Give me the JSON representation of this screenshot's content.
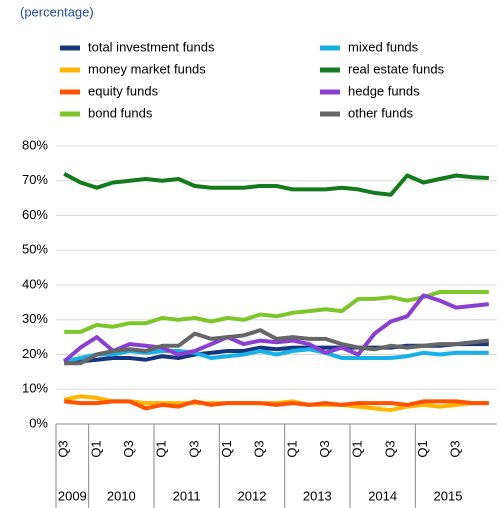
{
  "chart_data": {
    "type": "line",
    "subtitle": "(percentage)",
    "categories": [
      "Q3",
      null,
      "Q1",
      null,
      "Q3",
      null,
      "Q1",
      null,
      "Q3",
      null,
      "Q1",
      null,
      "Q3",
      null,
      "Q1",
      null,
      "Q3",
      null,
      "Q1",
      null,
      "Q3",
      null,
      "Q1",
      null,
      "Q3",
      null,
      null
    ],
    "years": [
      "2009",
      "2010",
      "2011",
      "2012",
      "2013",
      "2014",
      "2015"
    ],
    "ylim": [
      0,
      80
    ],
    "yticks": [
      {
        "value": 0,
        "label": "0%"
      },
      {
        "value": 10,
        "label": "10%"
      },
      {
        "value": 20,
        "label": "20%"
      },
      {
        "value": 30,
        "label": "30%"
      },
      {
        "value": 40,
        "label": "40%"
      },
      {
        "value": 50,
        "label": "50%"
      },
      {
        "value": 60,
        "label": "60%"
      },
      {
        "value": 70,
        "label": "70%"
      },
      {
        "value": 80,
        "label": "80%"
      }
    ],
    "grid": true,
    "series": [
      {
        "name": "total investment  funds",
        "color": "#17367e",
        "values": [
          17.5,
          18,
          18.5,
          19,
          19,
          18.5,
          19.5,
          19,
          20,
          20.5,
          21,
          21,
          22,
          21.5,
          22,
          22,
          22,
          22,
          22,
          22,
          22,
          22.5,
          22.5,
          22.5,
          23,
          23,
          23
        ]
      },
      {
        "name": "money market funds",
        "color": "#ffb400",
        "values": [
          7,
          8,
          7.5,
          6.5,
          6.5,
          6,
          6,
          6,
          6,
          6,
          6,
          6,
          6,
          6,
          6.5,
          5.5,
          5.5,
          5.5,
          5,
          4.5,
          4,
          5,
          5.5,
          5,
          5.5,
          6,
          6
        ]
      },
      {
        "name": "equity funds",
        "color": "#ff5200",
        "values": [
          6.5,
          6,
          6,
          6.5,
          6.5,
          4.5,
          5.5,
          5,
          6.5,
          5.5,
          6,
          6,
          6,
          5.5,
          6,
          5.5,
          6,
          5.5,
          6,
          6,
          6,
          5.5,
          6.5,
          6.5,
          6.5,
          6,
          6
        ]
      },
      {
        "name": "bond funds",
        "color": "#7cc62a",
        "values": [
          26.5,
          26.5,
          28.5,
          28,
          29,
          29,
          30.5,
          30,
          30.5,
          29.5,
          30.5,
          30,
          31.5,
          31,
          32,
          32.5,
          33,
          32.5,
          36,
          36,
          36.5,
          35.5,
          36.5,
          38,
          38,
          38,
          38
        ]
      },
      {
        "name": "mixed funds",
        "color": "#18b0e6",
        "values": [
          18,
          19,
          20,
          20,
          21,
          20.5,
          21,
          21,
          20.5,
          19,
          19.5,
          20,
          21,
          20,
          21,
          21.5,
          20.5,
          19,
          19,
          19,
          19,
          19.5,
          20.5,
          20,
          20.5,
          20.5,
          20.5
        ]
      },
      {
        "name": "real estate funds",
        "color": "#137a1e",
        "values": [
          72,
          69.5,
          68,
          69.5,
          70,
          70.5,
          70,
          70.5,
          68.5,
          68,
          68,
          68,
          68.5,
          68.5,
          67.5,
          67.5,
          67.5,
          68,
          67.5,
          66.5,
          66,
          71.5,
          69.5,
          70.5,
          71.5,
          71,
          70.8
        ]
      },
      {
        "name": "hedge funds",
        "color": "#8a3fd1",
        "values": [
          18,
          22,
          25,
          21,
          23,
          22.5,
          22,
          20,
          21,
          23,
          25,
          23,
          24,
          23.5,
          24,
          23,
          20.5,
          22,
          20,
          26,
          29.5,
          31,
          37,
          35.5,
          33.5,
          34,
          34.5
        ]
      },
      {
        "name": "other funds",
        "color": "#666666",
        "values": [
          17.5,
          17.5,
          20,
          21,
          21.5,
          21,
          22.5,
          22.5,
          26,
          24.5,
          25,
          25.5,
          27,
          24.5,
          25,
          24.5,
          24.5,
          23,
          22,
          21.5,
          22.5,
          22,
          22.5,
          23,
          23,
          23.5,
          24
        ]
      }
    ]
  }
}
